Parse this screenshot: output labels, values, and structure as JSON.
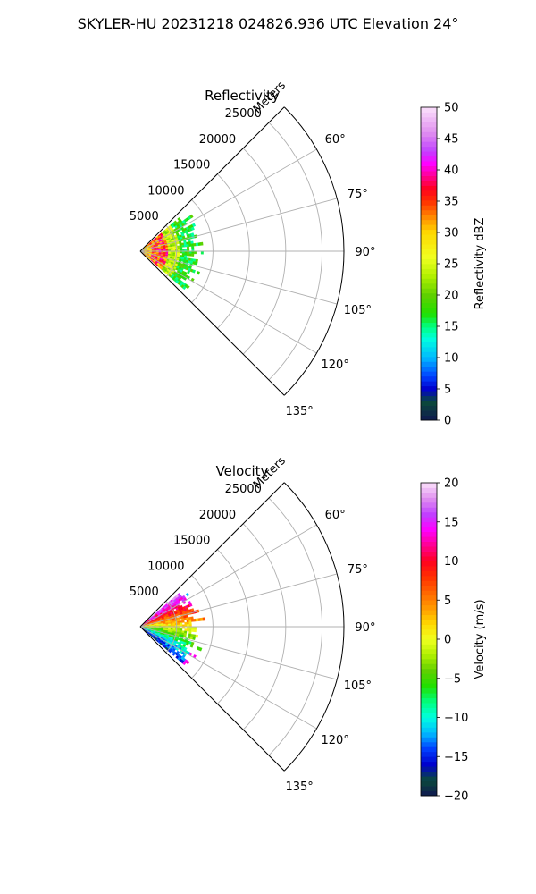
{
  "figure": {
    "suptitle": "SKYLER-HU  20231218  024826.936 UTC Elevation 24°"
  },
  "chart_data": [
    {
      "type": "heatmap",
      "title": "Reflectivity",
      "radial_label": "Meters",
      "radial_ticks": [
        5000,
        10000,
        15000,
        20000,
        25000
      ],
      "radial_tick_labels": [
        "5000",
        "10000",
        "15000",
        "20000",
        "25000"
      ],
      "rlim": [
        0,
        28000
      ],
      "azimuth_range_deg": [
        45,
        135
      ],
      "azimuth_ticks": [
        60,
        75,
        90,
        105,
        120,
        135
      ],
      "azimuth_tick_labels": [
        "60°",
        "75°",
        "90°",
        "105°",
        "120°",
        "135°"
      ],
      "grid": true,
      "data_extent_m": 9000,
      "colorbar": {
        "label": "Reflectivity dBZ",
        "vmin": 0,
        "vmax": 50,
        "ticks": [
          0,
          5,
          10,
          15,
          20,
          25,
          30,
          35,
          40,
          45,
          50
        ],
        "tick_labels": [
          "0",
          "5",
          "10",
          "15",
          "20",
          "25",
          "30",
          "35",
          "40",
          "45",
          "50"
        ],
        "colormap_stops": [
          {
            "v": 0,
            "c": "#101850"
          },
          {
            "v": 3,
            "c": "#0a4a3a"
          },
          {
            "v": 5,
            "c": "#0000cc"
          },
          {
            "v": 7,
            "c": "#0040ff"
          },
          {
            "v": 10,
            "c": "#00b8ff"
          },
          {
            "v": 13,
            "c": "#00ffe0"
          },
          {
            "v": 15,
            "c": "#00ff80"
          },
          {
            "v": 17,
            "c": "#20e000"
          },
          {
            "v": 20,
            "c": "#60d000"
          },
          {
            "v": 23,
            "c": "#b0f000"
          },
          {
            "v": 26,
            "c": "#f0ff20"
          },
          {
            "v": 30,
            "c": "#ffd800"
          },
          {
            "v": 32,
            "c": "#ff9a00"
          },
          {
            "v": 35,
            "c": "#ff3000"
          },
          {
            "v": 37,
            "c": "#ff0020"
          },
          {
            "v": 39,
            "c": "#ff0090"
          },
          {
            "v": 41,
            "c": "#ff00ff"
          },
          {
            "v": 43,
            "c": "#c040ff"
          },
          {
            "v": 46,
            "c": "#e090f0"
          },
          {
            "v": 50,
            "c": "#fbe0fb"
          }
        ]
      }
    },
    {
      "type": "heatmap",
      "title": "Velocity",
      "radial_label": "Meters",
      "radial_ticks": [
        5000,
        10000,
        15000,
        20000,
        25000
      ],
      "radial_tick_labels": [
        "5000",
        "10000",
        "15000",
        "20000",
        "25000"
      ],
      "rlim": [
        0,
        28000
      ],
      "azimuth_range_deg": [
        45,
        135
      ],
      "azimuth_ticks": [
        60,
        75,
        90,
        105,
        120,
        135
      ],
      "azimuth_tick_labels": [
        "60°",
        "75°",
        "90°",
        "105°",
        "120°",
        "135°"
      ],
      "grid": true,
      "data_extent_m": 9000,
      "colorbar": {
        "label": "Velocity (m/s)",
        "vmin": -20,
        "vmax": 20,
        "ticks": [
          -20,
          -15,
          -10,
          -5,
          0,
          5,
          10,
          15,
          20
        ],
        "tick_labels": [
          "−20",
          "−15",
          "−10",
          "−5",
          "0",
          "5",
          "10",
          "15",
          "20"
        ],
        "colormap_stops": [
          {
            "v": -20,
            "c": "#101850"
          },
          {
            "v": -18,
            "c": "#0a4a3a"
          },
          {
            "v": -16,
            "c": "#0000cc"
          },
          {
            "v": -14,
            "c": "#0040ff"
          },
          {
            "v": -12,
            "c": "#00b8ff"
          },
          {
            "v": -10,
            "c": "#00ffe0"
          },
          {
            "v": -8,
            "c": "#00ff80"
          },
          {
            "v": -6,
            "c": "#20e000"
          },
          {
            "v": -4,
            "c": "#60d000"
          },
          {
            "v": -2,
            "c": "#b0f000"
          },
          {
            "v": 0,
            "c": "#f0ff20"
          },
          {
            "v": 2,
            "c": "#ffd800"
          },
          {
            "v": 4,
            "c": "#ff9a00"
          },
          {
            "v": 8,
            "c": "#ff3000"
          },
          {
            "v": 10,
            "c": "#ff0020"
          },
          {
            "v": 12,
            "c": "#ff0090"
          },
          {
            "v": 14,
            "c": "#ff00ff"
          },
          {
            "v": 16,
            "c": "#c040ff"
          },
          {
            "v": 18,
            "c": "#e090f0"
          },
          {
            "v": 20,
            "c": "#fbe0fb"
          }
        ]
      }
    }
  ]
}
